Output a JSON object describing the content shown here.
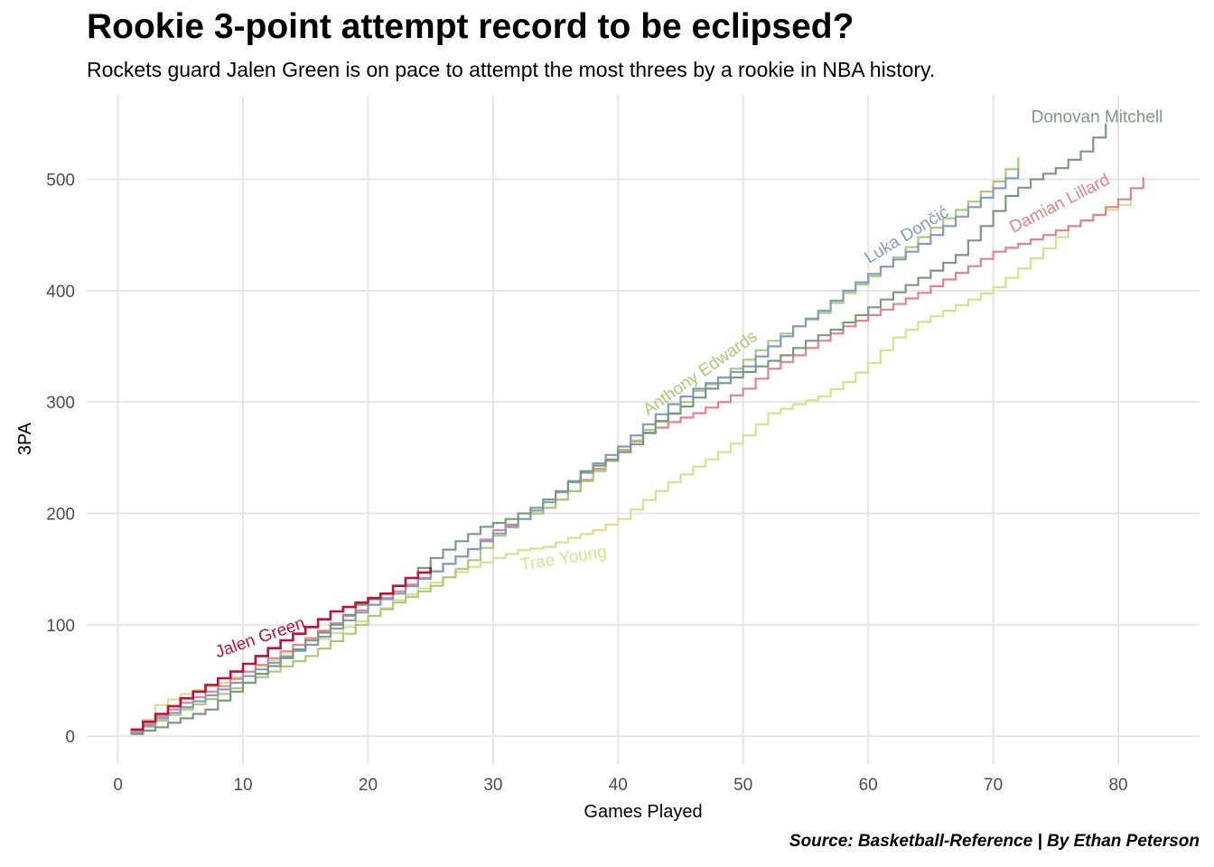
{
  "title": "Rookie 3-point attempt record to be eclipsed?",
  "subtitle": "Rockets guard Jalen Green is on pace to attempt the most threes by a rookie in NBA history.",
  "caption": "Source: Basketball-Reference | By Ethan Peterson",
  "chart_data": {
    "type": "line",
    "step": true,
    "xlabel": "Games Played",
    "ylabel": "3PA",
    "xlim": [
      -2.5,
      86.5
    ],
    "ylim": [
      -25,
      575
    ],
    "x_ticks": [
      0,
      10,
      20,
      30,
      40,
      50,
      60,
      70,
      80
    ],
    "y_ticks": [
      0,
      100,
      200,
      300,
      400,
      500
    ],
    "grid": true,
    "legend": "none (direct labels)",
    "series": [
      {
        "name": "Trae Young",
        "color": "#d9e08a",
        "width": 2.2,
        "label_angle": -9,
        "points": [
          [
            1,
            2
          ],
          [
            3,
            28
          ],
          [
            5,
            38
          ],
          [
            8,
            48
          ],
          [
            10,
            58
          ],
          [
            12,
            68
          ],
          [
            15,
            82
          ],
          [
            18,
            98
          ],
          [
            20,
            108
          ],
          [
            22,
            122
          ],
          [
            25,
            138
          ],
          [
            28,
            152
          ],
          [
            30,
            160
          ],
          [
            32,
            167
          ],
          [
            34,
            170
          ],
          [
            36,
            178
          ],
          [
            38,
            185
          ],
          [
            40,
            195
          ],
          [
            42,
            212
          ],
          [
            44,
            228
          ],
          [
            46,
            242
          ],
          [
            48,
            255
          ],
          [
            50,
            270
          ],
          [
            52,
            290
          ],
          [
            54,
            298
          ],
          [
            56,
            305
          ],
          [
            58,
            318
          ],
          [
            60,
            335
          ],
          [
            62,
            358
          ],
          [
            64,
            372
          ],
          [
            66,
            382
          ],
          [
            68,
            392
          ],
          [
            70,
            403
          ],
          [
            72,
            420
          ],
          [
            74,
            438
          ],
          [
            76,
            458
          ],
          [
            78,
            468
          ],
          [
            80,
            477
          ],
          [
            81,
            482
          ]
        ]
      },
      {
        "name": "Damian Lillard",
        "color": "#e8808e",
        "width": 2.2,
        "label_angle": -27,
        "points": [
          [
            1,
            4
          ],
          [
            3,
            18
          ],
          [
            5,
            30
          ],
          [
            8,
            45
          ],
          [
            10,
            58
          ],
          [
            12,
            70
          ],
          [
            15,
            88
          ],
          [
            18,
            108
          ],
          [
            20,
            118
          ],
          [
            22,
            130
          ],
          [
            25,
            148
          ],
          [
            28,
            168
          ],
          [
            30,
            185
          ],
          [
            32,
            195
          ],
          [
            34,
            205
          ],
          [
            36,
            220
          ],
          [
            38,
            240
          ],
          [
            40,
            257
          ],
          [
            42,
            272
          ],
          [
            44,
            282
          ],
          [
            46,
            290
          ],
          [
            48,
            300
          ],
          [
            50,
            312
          ],
          [
            52,
            330
          ],
          [
            54,
            342
          ],
          [
            56,
            355
          ],
          [
            58,
            368
          ],
          [
            60,
            378
          ],
          [
            62,
            388
          ],
          [
            64,
            398
          ],
          [
            66,
            410
          ],
          [
            68,
            422
          ],
          [
            70,
            435
          ],
          [
            72,
            442
          ],
          [
            74,
            450
          ],
          [
            76,
            458
          ],
          [
            78,
            468
          ],
          [
            80,
            482
          ],
          [
            82,
            502
          ]
        ]
      },
      {
        "name": "Anthony Edwards",
        "color": "#a8cc74",
        "width": 2.2,
        "label_angle": -35,
        "points": [
          [
            1,
            3
          ],
          [
            3,
            14
          ],
          [
            5,
            24
          ],
          [
            8,
            38
          ],
          [
            10,
            48
          ],
          [
            12,
            58
          ],
          [
            15,
            72
          ],
          [
            18,
            92
          ],
          [
            20,
            108
          ],
          [
            22,
            120
          ],
          [
            25,
            135
          ],
          [
            28,
            158
          ],
          [
            30,
            180
          ],
          [
            32,
            195
          ],
          [
            34,
            205
          ],
          [
            36,
            220
          ],
          [
            38,
            238
          ],
          [
            40,
            256
          ],
          [
            42,
            275
          ],
          [
            44,
            290
          ],
          [
            46,
            310
          ],
          [
            48,
            322
          ],
          [
            50,
            338
          ],
          [
            52,
            355
          ],
          [
            54,
            368
          ],
          [
            56,
            380
          ],
          [
            58,
            398
          ],
          [
            60,
            413
          ],
          [
            62,
            430
          ],
          [
            64,
            448
          ],
          [
            66,
            465
          ],
          [
            68,
            480
          ],
          [
            70,
            498
          ],
          [
            72,
            520
          ]
        ]
      },
      {
        "name": "Luka Dončić",
        "color": "#7f9dbd",
        "width": 2.2,
        "label_angle": -31,
        "points": [
          [
            1,
            3
          ],
          [
            3,
            16
          ],
          [
            5,
            26
          ],
          [
            8,
            42
          ],
          [
            10,
            54
          ],
          [
            12,
            66
          ],
          [
            15,
            82
          ],
          [
            18,
            104
          ],
          [
            20,
            118
          ],
          [
            22,
            128
          ],
          [
            25,
            148
          ],
          [
            28,
            168
          ],
          [
            30,
            182
          ],
          [
            32,
            195
          ],
          [
            34,
            210
          ],
          [
            36,
            228
          ],
          [
            38,
            245
          ],
          [
            40,
            260
          ],
          [
            42,
            280
          ],
          [
            44,
            298
          ],
          [
            46,
            312
          ],
          [
            48,
            322
          ],
          [
            50,
            332
          ],
          [
            52,
            350
          ],
          [
            54,
            368
          ],
          [
            56,
            382
          ],
          [
            58,
            400
          ],
          [
            60,
            415
          ],
          [
            62,
            428
          ],
          [
            64,
            442
          ],
          [
            66,
            458
          ],
          [
            68,
            475
          ],
          [
            70,
            492
          ],
          [
            72,
            510
          ]
        ]
      },
      {
        "name": "Donovan Mitchell",
        "color": "#7a9a7e",
        "width": 2.2,
        "label_angle": 0,
        "points": [
          [
            1,
            2
          ],
          [
            3,
            8
          ],
          [
            5,
            16
          ],
          [
            7,
            24
          ],
          [
            9,
            40
          ],
          [
            11,
            56
          ],
          [
            13,
            70
          ],
          [
            15,
            86
          ],
          [
            17,
            100
          ],
          [
            19,
            118
          ],
          [
            21,
            128
          ],
          [
            23,
            142
          ],
          [
            25,
            160
          ],
          [
            27,
            175
          ],
          [
            29,
            188
          ],
          [
            31,
            195
          ],
          [
            33,
            205
          ],
          [
            35,
            220
          ],
          [
            37,
            238
          ],
          [
            39,
            248
          ],
          [
            41,
            262
          ],
          [
            43,
            283
          ],
          [
            45,
            296
          ],
          [
            47,
            312
          ],
          [
            49,
            322
          ],
          [
            51,
            332
          ],
          [
            53,
            342
          ],
          [
            55,
            355
          ],
          [
            57,
            365
          ],
          [
            59,
            378
          ],
          [
            61,
            392
          ],
          [
            63,
            405
          ],
          [
            65,
            418
          ],
          [
            67,
            432
          ],
          [
            69,
            458
          ],
          [
            71,
            485
          ],
          [
            73,
            500
          ],
          [
            75,
            510
          ],
          [
            77,
            525
          ],
          [
            79,
            550
          ]
        ]
      },
      {
        "name": "Jalen Green",
        "color": "#bf0f3c",
        "width": 2.6,
        "label_angle": -19,
        "points": [
          [
            1,
            6
          ],
          [
            3,
            20
          ],
          [
            5,
            34
          ],
          [
            7,
            46
          ],
          [
            9,
            58
          ],
          [
            11,
            72
          ],
          [
            13,
            86
          ],
          [
            15,
            98
          ],
          [
            17,
            112
          ],
          [
            19,
            120
          ],
          [
            21,
            128
          ],
          [
            23,
            142
          ],
          [
            25,
            152
          ]
        ]
      }
    ],
    "annotations": [
      {
        "text": "Jalen Green",
        "x": 11.5,
        "y": 84,
        "series": "Jalen Green"
      },
      {
        "text": "Trae Young",
        "x": 35.7,
        "y": 155,
        "series": "Trae Young"
      },
      {
        "text": "Anthony Edwards",
        "x": 46.8,
        "y": 322,
        "series": "Anthony Edwards"
      },
      {
        "text": "Luka Dončić",
        "x": 63.3,
        "y": 446,
        "series": "Luka Dončić"
      },
      {
        "text": "Damian Lillard",
        "x": 75.5,
        "y": 474,
        "series": "Damian Lillard"
      },
      {
        "text": "Donovan Mitchell",
        "x": 78.3,
        "y": 551,
        "series": "Donovan Mitchell"
      }
    ]
  }
}
